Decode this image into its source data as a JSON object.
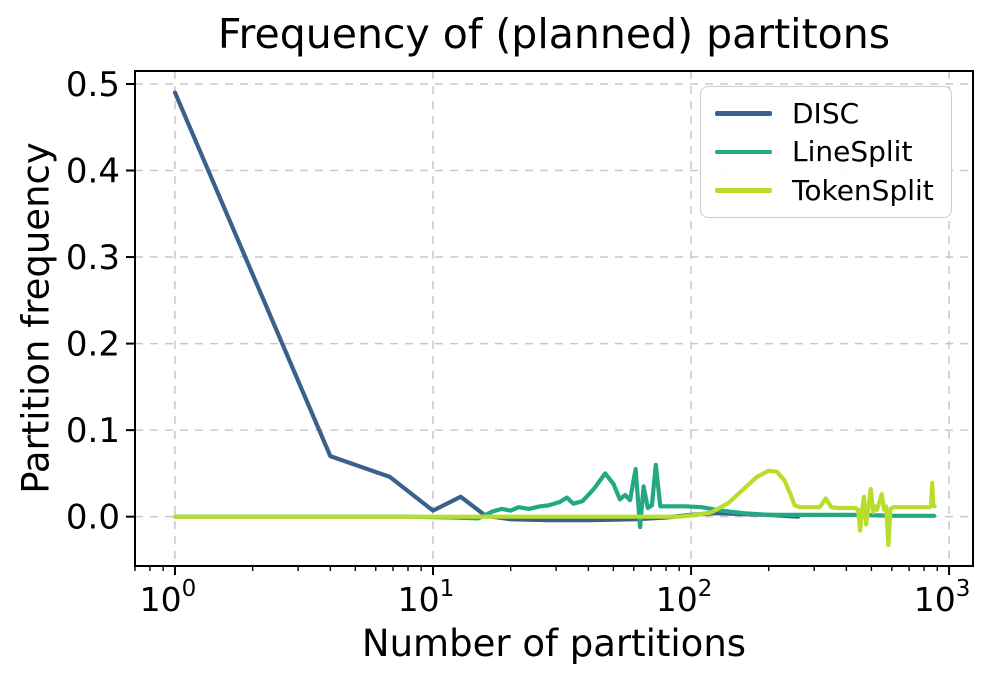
{
  "title": "Frequency of (planned) partitons",
  "chart_data": {
    "type": "line",
    "title": "Frequency of (planned) partitons",
    "xlabel": "Number of partitions",
    "ylabel": "Partition frequency",
    "xscale": "log",
    "xlim": [
      0.7,
      1238
    ],
    "ylim": [
      -0.057,
      0.515
    ],
    "grid": true,
    "grid_style": "dashed",
    "grid_color": "#c9c9c9",
    "legend_position": "upper right",
    "yticks": [
      {
        "value": 0.0,
        "label": "0.0"
      },
      {
        "value": 0.1,
        "label": "0.1"
      },
      {
        "value": 0.2,
        "label": "0.2"
      },
      {
        "value": 0.3,
        "label": "0.3"
      },
      {
        "value": 0.4,
        "label": "0.4"
      },
      {
        "value": 0.5,
        "label": "0.5"
      }
    ],
    "xticks": [
      {
        "value": 1,
        "base": "10",
        "exp": "0"
      },
      {
        "value": 10,
        "base": "10",
        "exp": "1"
      },
      {
        "value": 100,
        "base": "10",
        "exp": "2"
      },
      {
        "value": 1000,
        "base": "10",
        "exp": "3"
      }
    ],
    "series": [
      {
        "name": "DISC",
        "color": "#3a618d",
        "points": [
          [
            1,
            0.49
          ],
          [
            4,
            0.07
          ],
          [
            6.8,
            0.046
          ],
          [
            10,
            0.007
          ],
          [
            12.8,
            0.023
          ],
          [
            16,
            0.001
          ],
          [
            20,
            -0.003
          ],
          [
            28,
            -0.004
          ],
          [
            40,
            -0.004
          ],
          [
            60,
            -0.003
          ],
          [
            80,
            -0.001
          ],
          [
            100,
            0.002
          ],
          [
            125,
            0.004
          ],
          [
            160,
            0.003
          ],
          [
            200,
            0.002
          ],
          [
            260,
            0.0
          ]
        ]
      },
      {
        "name": "LineSplit",
        "color": "#23a884",
        "points": [
          [
            1,
            0.0
          ],
          [
            8,
            0.0
          ],
          [
            12,
            -0.001
          ],
          [
            15,
            -0.002
          ],
          [
            17,
            0.006
          ],
          [
            18.5,
            0.009
          ],
          [
            20,
            0.007
          ],
          [
            21.5,
            0.011
          ],
          [
            23.5,
            0.009
          ],
          [
            26,
            0.012
          ],
          [
            28,
            0.013
          ],
          [
            31,
            0.017
          ],
          [
            33,
            0.022
          ],
          [
            35,
            0.015
          ],
          [
            38,
            0.018
          ],
          [
            42,
            0.032
          ],
          [
            46.5,
            0.05
          ],
          [
            50,
            0.038
          ],
          [
            53,
            0.02
          ],
          [
            55.5,
            0.025
          ],
          [
            58,
            0.019
          ],
          [
            61,
            0.055
          ],
          [
            63.5,
            -0.012
          ],
          [
            65.5,
            0.035
          ],
          [
            68,
            0.01
          ],
          [
            70.5,
            0.013
          ],
          [
            73,
            0.06
          ],
          [
            76,
            0.012
          ],
          [
            82,
            0.012
          ],
          [
            95,
            0.012
          ],
          [
            110,
            0.011
          ],
          [
            130,
            0.007
          ],
          [
            160,
            0.004
          ],
          [
            200,
            0.002
          ],
          [
            300,
            0.002
          ],
          [
            450,
            0.002
          ],
          [
            600,
            0.001
          ],
          [
            875,
            0.001
          ]
        ]
      },
      {
        "name": "TokenSplit",
        "color": "#b8dd2c",
        "points": [
          [
            1,
            0.0
          ],
          [
            60,
            0.0
          ],
          [
            90,
            0.0
          ],
          [
            105,
            0.002
          ],
          [
            120,
            0.005
          ],
          [
            140,
            0.016
          ],
          [
            160,
            0.032
          ],
          [
            180,
            0.046
          ],
          [
            200,
            0.053
          ],
          [
            215,
            0.052
          ],
          [
            230,
            0.042
          ],
          [
            243,
            0.026
          ],
          [
            252,
            0.013
          ],
          [
            265,
            0.011
          ],
          [
            290,
            0.011
          ],
          [
            315,
            0.011
          ],
          [
            333,
            0.021
          ],
          [
            350,
            0.011
          ],
          [
            370,
            0.01
          ],
          [
            400,
            0.01
          ],
          [
            432,
            0.01
          ],
          [
            444,
            0.008
          ],
          [
            452,
            -0.016
          ],
          [
            460,
            0.008
          ],
          [
            468,
            0.023
          ],
          [
            477,
            -0.009
          ],
          [
            486,
            0.008
          ],
          [
            497,
            0.032
          ],
          [
            508,
            0.005
          ],
          [
            516,
            0.012
          ],
          [
            525,
            0.008
          ],
          [
            536,
            0.016
          ],
          [
            548,
            0.026
          ],
          [
            560,
            0.008
          ],
          [
            570,
            0.012
          ],
          [
            582,
            -0.033
          ],
          [
            593,
            0.009
          ],
          [
            610,
            0.011
          ],
          [
            700,
            0.011
          ],
          [
            790,
            0.011
          ],
          [
            840,
            0.011
          ],
          [
            852,
            0.012
          ],
          [
            860,
            0.039
          ],
          [
            868,
            0.013
          ],
          [
            880,
            0.012
          ]
        ]
      }
    ]
  }
}
